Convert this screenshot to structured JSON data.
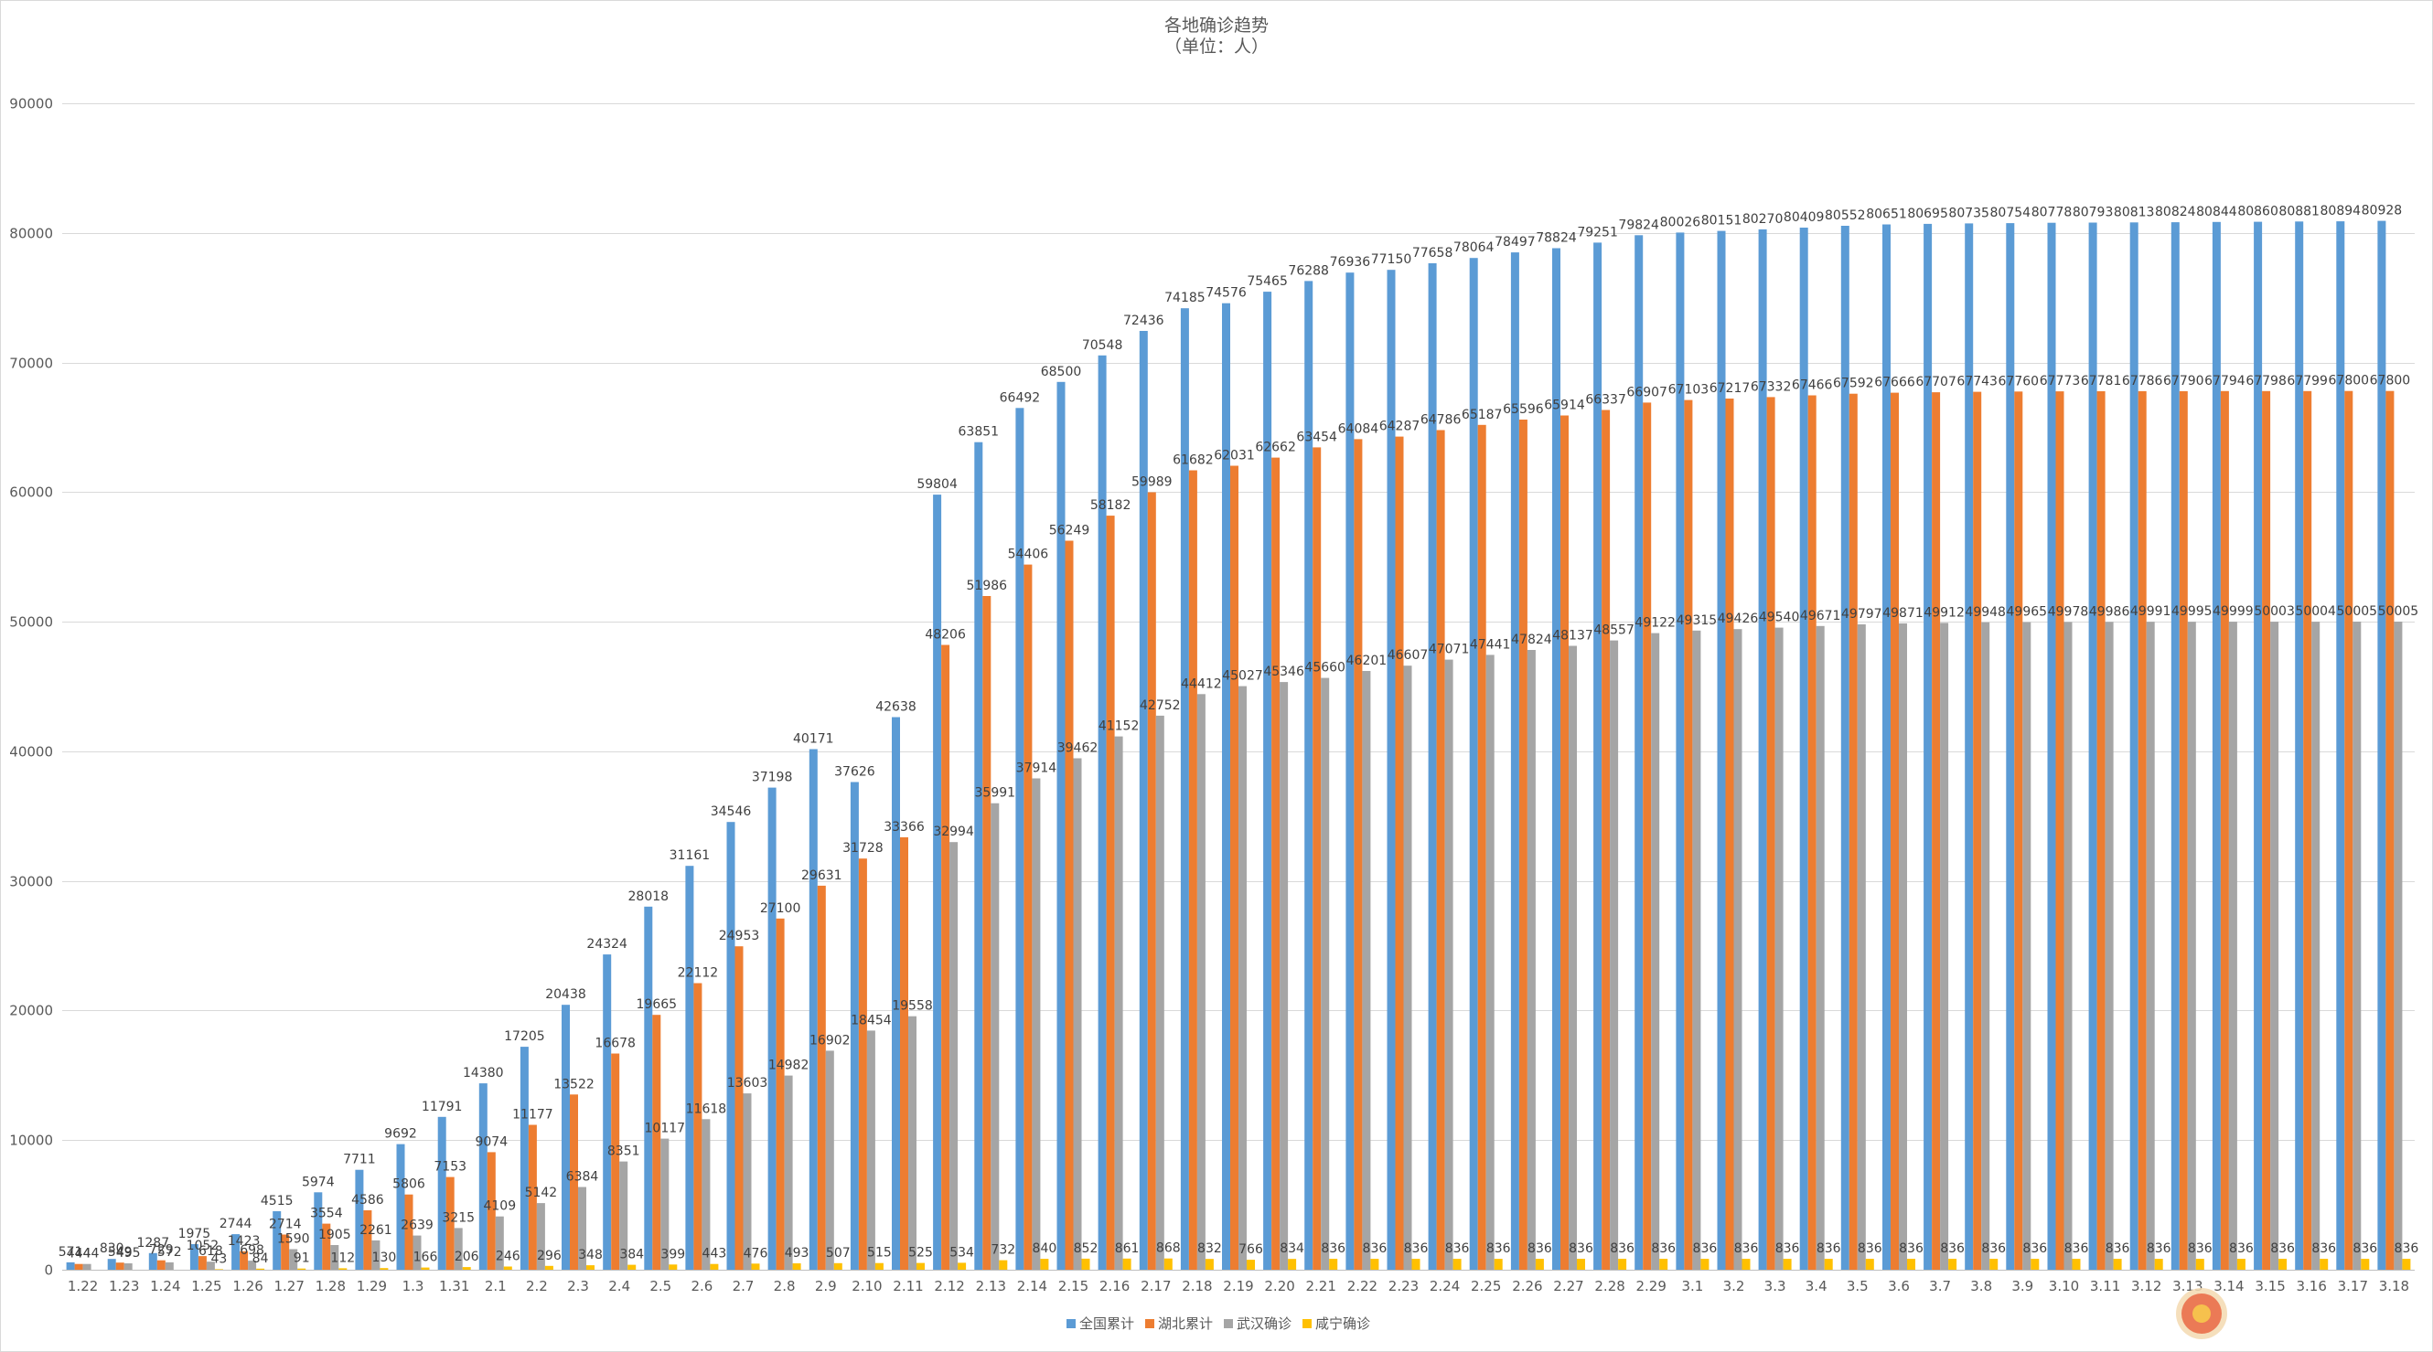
{
  "chart_data": {
    "type": "bar",
    "title": "各地确诊趋势",
    "subtitle": "（单位：人）",
    "xlabel": "",
    "ylabel": "",
    "ylim": [
      0,
      90000
    ],
    "yticks": [
      0,
      10000,
      20000,
      30000,
      40000,
      50000,
      60000,
      70000,
      80000,
      90000
    ],
    "grid": true,
    "legend_position": "bottom",
    "categories": [
      "1.22",
      "1.23",
      "1.24",
      "1.25",
      "1.26",
      "1.27",
      "1.28",
      "1.29",
      "1.3",
      "1.31",
      "2.1",
      "2.2",
      "2.3",
      "2.4",
      "2.5",
      "2.6",
      "2.7",
      "2.8",
      "2.9",
      "2.10",
      "2.11",
      "2.12",
      "2.13",
      "2.14",
      "2.15",
      "2.16",
      "2.17",
      "2.18",
      "2.19",
      "2.20",
      "2.21",
      "2.22",
      "2.23",
      "2.24",
      "2.25",
      "2.26",
      "2.27",
      "2.28",
      "2.29",
      "3.1",
      "3.2",
      "3.3",
      "3.4",
      "3.5",
      "3.6",
      "3.7",
      "3.8",
      "3.9",
      "3.10",
      "3.11",
      "3.12",
      "3.13",
      "3.14",
      "3.15",
      "3.16",
      "3.17",
      "3.18"
    ],
    "series": [
      {
        "name": "全国累计",
        "color": "#5B9BD5",
        "values": [
          571,
          830,
          1287,
          1975,
          2744,
          4515,
          5974,
          7711,
          9692,
          11791,
          14380,
          17205,
          20438,
          24324,
          28018,
          31161,
          34546,
          37198,
          40171,
          37626,
          42638,
          59804,
          63851,
          66492,
          68500,
          70548,
          72436,
          74185,
          74576,
          75465,
          76288,
          76936,
          77150,
          77658,
          78064,
          78497,
          78824,
          79251,
          79824,
          80026,
          80151,
          80270,
          80409,
          80552,
          80651,
          80695,
          80735,
          80754,
          80778,
          80793,
          80813,
          80824,
          80844,
          80860,
          80881,
          80894,
          80928
        ]
      },
      {
        "name": "湖北累计",
        "color": "#ED7D31",
        "values": [
          444,
          549,
          729,
          1052,
          1423,
          2714,
          3554,
          4586,
          5806,
          7153,
          9074,
          11177,
          13522,
          16678,
          19665,
          22112,
          24953,
          27100,
          29631,
          31728,
          33366,
          48206,
          51986,
          54406,
          56249,
          58182,
          59989,
          61682,
          62031,
          62662,
          63454,
          64084,
          64287,
          64786,
          65187,
          65596,
          65914,
          66337,
          66907,
          67103,
          67217,
          67332,
          67466,
          67592,
          67666,
          67707,
          67743,
          67760,
          67773,
          67781,
          67786,
          67790,
          67794,
          67798,
          67799,
          67800,
          67800
        ]
      },
      {
        "name": "武汉确诊",
        "color": "#A5A5A5",
        "values": [
          444,
          495,
          572,
          618,
          698,
          1590,
          1905,
          2261,
          2639,
          3215,
          4109,
          5142,
          6384,
          8351,
          10117,
          11618,
          13603,
          14982,
          16902,
          18454,
          19558,
          32994,
          35991,
          37914,
          39462,
          41152,
          42752,
          44412,
          45027,
          45346,
          45660,
          46201,
          46607,
          47071,
          47441,
          47824,
          48137,
          48557,
          49122,
          49315,
          49426,
          49540,
          49671,
          49797,
          49871,
          49912,
          49948,
          49965,
          49978,
          49986,
          49991,
          49995,
          49999,
          50003,
          50004,
          50005,
          50005
        ]
      },
      {
        "name": "咸宁确诊",
        "color": "#FFC000",
        "values": [
          null,
          null,
          null,
          43,
          84,
          91,
          112,
          130,
          166,
          206,
          246,
          296,
          348,
          384,
          399,
          443,
          476,
          493,
          507,
          515,
          525,
          534,
          732,
          840,
          852,
          861,
          868,
          832,
          766,
          834,
          836,
          836,
          836,
          836,
          836,
          836,
          836,
          836,
          836,
          836,
          836,
          836,
          836,
          836,
          836,
          836,
          836,
          836,
          836,
          836,
          836,
          836,
          836,
          836,
          836,
          836,
          836
        ]
      }
    ]
  }
}
